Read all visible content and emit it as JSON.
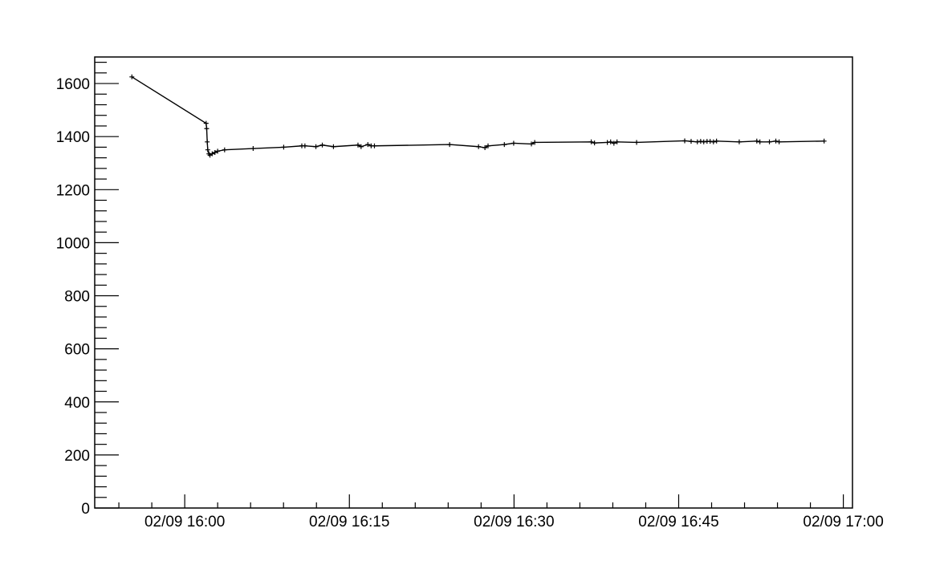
{
  "chart_data": {
    "type": "line",
    "title": "",
    "xlabel": "",
    "ylabel": "",
    "grid": false,
    "legend": "none",
    "line_color": "#000000",
    "marker": "plus",
    "xlim": [
      "02/09 15:51:48",
      "02/09 17:00:50"
    ],
    "ylim": [
      0,
      1700
    ],
    "x_ticks": [
      "02/09 16:00",
      "02/09 16:15",
      "02/09 16:30",
      "02/09 16:45",
      "02/09 17:00"
    ],
    "y_ticks": [
      "0",
      "200",
      "400",
      "600",
      "800",
      "1000",
      "1200",
      "1400",
      "1600"
    ],
    "series": [
      {
        "x": [
          "02/09 15:55:11",
          "02/09 16:01:57",
          "02/09 16:02:00",
          "02/09 16:02:03",
          "02/09 16:02:06",
          "02/09 16:02:12",
          "02/09 16:02:18",
          "02/09 16:02:30",
          "02/09 16:02:45",
          "02/09 16:03:00",
          "02/09 16:03:38",
          "02/09 16:06:14",
          "02/09 16:09:01",
          "02/09 16:10:40",
          "02/09 16:10:57",
          "02/09 16:11:57",
          "02/09 16:12:32",
          "02/09 16:13:33",
          "02/09 16:15:47",
          "02/09 16:16:04",
          "02/09 16:16:41",
          "02/09 16:16:59",
          "02/09 16:17:17",
          "02/09 16:24:08",
          "02/09 16:26:46",
          "02/09 16:27:21",
          "02/09 16:27:38",
          "02/09 16:29:07",
          "02/09 16:29:58",
          "02/09 16:31:35",
          "02/09 16:31:53",
          "02/09 16:37:02",
          "02/09 16:37:20",
          "02/09 16:38:30",
          "02/09 16:38:48",
          "02/09 16:39:06",
          "02/09 16:39:23",
          "02/09 16:41:10",
          "02/09 16:45:33",
          "02/09 16:46:08",
          "02/09 16:46:42",
          "02/09 16:47:00",
          "02/09 16:47:17",
          "02/09 16:47:35",
          "02/09 16:47:52",
          "02/09 16:48:10",
          "02/09 16:48:27",
          "02/09 16:50:31",
          "02/09 16:52:07",
          "02/09 16:52:24",
          "02/09 16:53:16",
          "02/09 16:53:51",
          "02/09 16:54:09",
          "02/09 16:58:15"
        ],
        "y": [
          1625,
          1450,
          1430,
          1380,
          1350,
          1335,
          1330,
          1335,
          1340,
          1345,
          1350,
          1355,
          1360,
          1365,
          1365,
          1362,
          1368,
          1362,
          1368,
          1362,
          1370,
          1365,
          1365,
          1370,
          1362,
          1358,
          1365,
          1370,
          1375,
          1372,
          1378,
          1380,
          1376,
          1378,
          1380,
          1375,
          1380,
          1378,
          1384,
          1382,
          1380,
          1382,
          1380,
          1382,
          1382,
          1380,
          1383,
          1380,
          1383,
          1380,
          1380,
          1383,
          1380,
          1383
        ]
      }
    ]
  }
}
